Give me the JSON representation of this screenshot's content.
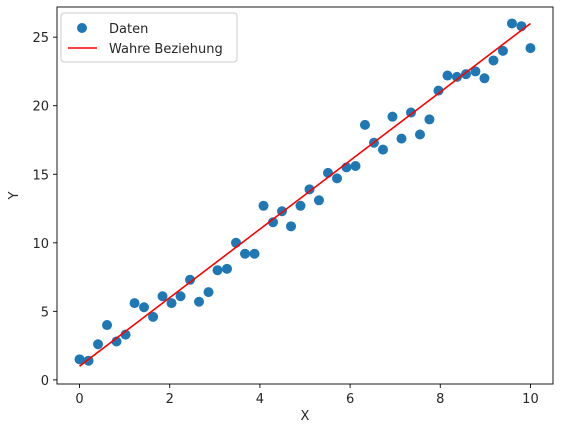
{
  "chart_data": {
    "type": "scatter",
    "title": "",
    "xlabel": "X",
    "ylabel": "Y",
    "xlim": [
      -0.5,
      10.5
    ],
    "ylim": [
      -0.3,
      27.2
    ],
    "xticks": [
      0,
      2,
      4,
      6,
      8,
      10
    ],
    "yticks": [
      0,
      5,
      10,
      15,
      20,
      25
    ],
    "grid": false,
    "legend_position": "top-left",
    "series": [
      {
        "name": "Daten",
        "kind": "scatter",
        "color": "#1f77b4",
        "points": [
          [
            0.0,
            1.5
          ],
          [
            0.2,
            1.4
          ],
          [
            0.41,
            2.6
          ],
          [
            0.61,
            4.0
          ],
          [
            0.82,
            2.8
          ],
          [
            1.02,
            3.3
          ],
          [
            1.22,
            5.6
          ],
          [
            1.43,
            5.3
          ],
          [
            1.63,
            4.6
          ],
          [
            1.84,
            6.1
          ],
          [
            2.04,
            5.6
          ],
          [
            2.24,
            6.1
          ],
          [
            2.45,
            7.3
          ],
          [
            2.65,
            5.7
          ],
          [
            2.86,
            6.4
          ],
          [
            3.06,
            8.0
          ],
          [
            3.27,
            8.1
          ],
          [
            3.47,
            10.0
          ],
          [
            3.67,
            9.2
          ],
          [
            3.88,
            9.2
          ],
          [
            4.08,
            12.7
          ],
          [
            4.29,
            11.5
          ],
          [
            4.49,
            12.3
          ],
          [
            4.69,
            11.2
          ],
          [
            4.9,
            12.7
          ],
          [
            5.1,
            13.9
          ],
          [
            5.31,
            13.1
          ],
          [
            5.51,
            15.1
          ],
          [
            5.71,
            14.7
          ],
          [
            5.92,
            15.5
          ],
          [
            6.12,
            15.6
          ],
          [
            6.33,
            18.6
          ],
          [
            6.53,
            17.3
          ],
          [
            6.73,
            16.8
          ],
          [
            6.94,
            19.2
          ],
          [
            7.14,
            17.6
          ],
          [
            7.35,
            19.5
          ],
          [
            7.55,
            17.9
          ],
          [
            7.76,
            19.0
          ],
          [
            7.96,
            21.1
          ],
          [
            8.16,
            22.2
          ],
          [
            8.37,
            22.1
          ],
          [
            8.57,
            22.3
          ],
          [
            8.78,
            22.5
          ],
          [
            8.98,
            22.0
          ],
          [
            9.18,
            23.3
          ],
          [
            9.39,
            24.0
          ],
          [
            9.59,
            26.0
          ],
          [
            9.8,
            25.8
          ],
          [
            10.0,
            24.2
          ]
        ]
      },
      {
        "name": "Wahre Beziehung",
        "kind": "line",
        "color": "#ff0000",
        "points": [
          [
            0,
            1.0
          ],
          [
            10,
            26.0
          ]
        ]
      }
    ]
  }
}
